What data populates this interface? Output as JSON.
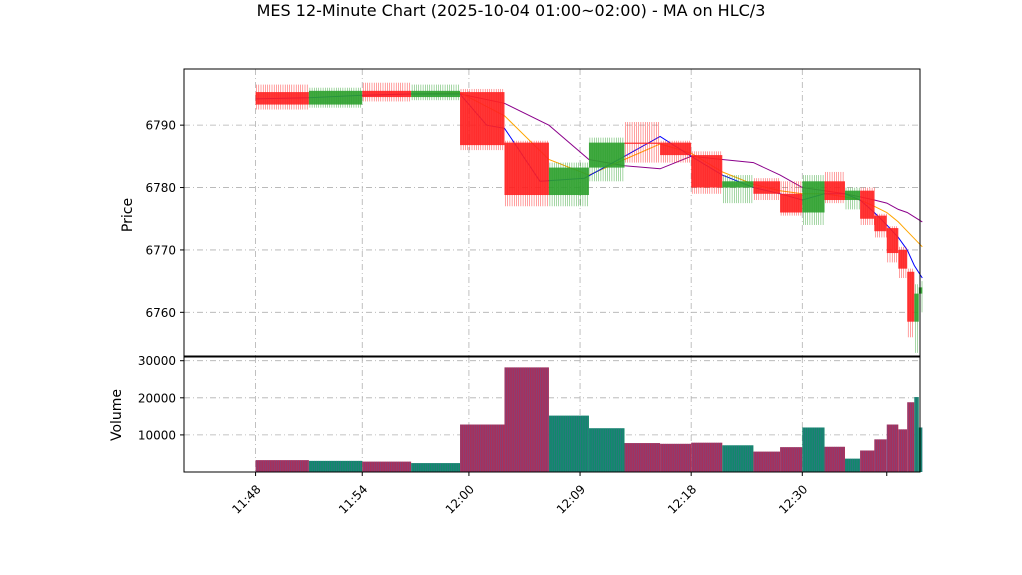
{
  "chart_data": {
    "type": "candlestick",
    "title": "MES 12-Minute Chart (2025-10-04 01:00~02:00) - MA on HLC/3",
    "price_panel": {
      "ylabel": "Price",
      "ylim": [
        6753,
        6799
      ],
      "yticks": [
        6760,
        6770,
        6780,
        6790
      ],
      "grid": true
    },
    "volume_panel": {
      "ylabel": "Volume",
      "ylim": [
        0,
        31000
      ],
      "yticks": [
        10000,
        20000,
        30000
      ],
      "ytick_labels": [
        "10000",
        "20000",
        "30000"
      ],
      "grid": true
    },
    "xlim": [
      0,
      76
    ],
    "xticks": [
      {
        "x": 4,
        "label": "11:48"
      },
      {
        "x": 16,
        "label": "11:54"
      },
      {
        "x": 28,
        "label": "12:00"
      },
      {
        "x": 40.5,
        "label": "12:09"
      },
      {
        "x": 53,
        "label": "12:18"
      },
      {
        "x": 65.5,
        "label": "12:30"
      },
      {
        "x": 75,
        "label": ""
      }
    ],
    "colors": {
      "up": "#2ca02c",
      "down": "#ff2020",
      "volume_up": "#0f8a6a",
      "volume_down": "#a8305a",
      "volume_edge": "#5a5aa0",
      "ma_fast": "#0000ff",
      "ma_mid": "#ffa500",
      "ma_slow": "#8b008b",
      "grid": "#b0b0b0"
    },
    "candles": [
      {
        "start": 4,
        "end": 10,
        "open": 6795.3,
        "high": 6796.5,
        "low": 6792.5,
        "close": 6793.3,
        "volume": 3200
      },
      {
        "start": 10,
        "end": 16,
        "open": 6793.3,
        "high": 6796.0,
        "low": 6792.8,
        "close": 6795.5,
        "volume": 3000
      },
      {
        "start": 16,
        "end": 21.5,
        "open": 6795.5,
        "high": 6796.8,
        "low": 6793.8,
        "close": 6794.5,
        "volume": 2800
      },
      {
        "start": 21.5,
        "end": 27,
        "open": 6794.5,
        "high": 6796.5,
        "low": 6794.0,
        "close": 6795.5,
        "volume": 2400
      },
      {
        "start": 27,
        "end": 32,
        "open": 6795.3,
        "high": 6795.8,
        "low": 6786.0,
        "close": 6786.8,
        "volume": 12800
      },
      {
        "start": 32,
        "end": 37,
        "open": 6787.2,
        "high": 6787.5,
        "low": 6777.0,
        "close": 6778.8,
        "volume": 28200
      },
      {
        "start": 37,
        "end": 41.5,
        "open": 6778.8,
        "high": 6784.0,
        "low": 6777.0,
        "close": 6783.2,
        "volume": 15200
      },
      {
        "start": 41.5,
        "end": 45.5,
        "open": 6783.2,
        "high": 6788.0,
        "low": 6781.0,
        "close": 6787.2,
        "volume": 11800
      },
      {
        "start": 45.5,
        "end": 49.5,
        "open": 6787.2,
        "high": 6790.5,
        "low": 6784.0,
        "close": 6787.0,
        "volume": 7800
      },
      {
        "start": 49.5,
        "end": 53,
        "open": 6787.2,
        "high": 6787.5,
        "low": 6784.0,
        "close": 6785.2,
        "volume": 7600
      },
      {
        "start": 53,
        "end": 56.5,
        "open": 6785.2,
        "high": 6785.8,
        "low": 6779.0,
        "close": 6780.0,
        "volume": 7900
      },
      {
        "start": 56.5,
        "end": 60,
        "open": 6780.0,
        "high": 6782.0,
        "low": 6777.5,
        "close": 6781.0,
        "volume": 7200
      },
      {
        "start": 60,
        "end": 63,
        "open": 6781.0,
        "high": 6781.5,
        "low": 6778.0,
        "close": 6779.0,
        "volume": 5500
      },
      {
        "start": 63,
        "end": 65.5,
        "open": 6779.0,
        "high": 6781.0,
        "low": 6775.5,
        "close": 6776.0,
        "volume": 6700
      },
      {
        "start": 65.5,
        "end": 68,
        "open": 6776.0,
        "high": 6782.0,
        "low": 6774.0,
        "close": 6781.0,
        "volume": 12000
      },
      {
        "start": 68,
        "end": 70.3,
        "open": 6781.0,
        "high": 6782.5,
        "low": 6777.5,
        "close": 6778.0,
        "volume": 6800
      },
      {
        "start": 70.3,
        "end": 72,
        "open": 6778.0,
        "high": 6780.0,
        "low": 6776.5,
        "close": 6779.5,
        "volume": 3600
      },
      {
        "start": 72,
        "end": 73.6,
        "open": 6779.5,
        "high": 6780.0,
        "low": 6774.0,
        "close": 6775.0,
        "volume": 5800
      },
      {
        "start": 73.6,
        "end": 75,
        "open": 6775.5,
        "high": 6775.8,
        "low": 6772.0,
        "close": 6773.0,
        "volume": 8800
      },
      {
        "start": 75,
        "end": 76.3,
        "open": 6773.5,
        "high": 6773.8,
        "low": 6768.0,
        "close": 6769.5,
        "volume": 12800
      },
      {
        "start": 76.3,
        "end": 77.3,
        "open": 6770.0,
        "high": 6770.5,
        "low": 6765.5,
        "close": 6767.0,
        "volume": 11500
      },
      {
        "start": 77.3,
        "end": 78.1,
        "open": 6766.5,
        "high": 6767.0,
        "low": 6756.0,
        "close": 6758.5,
        "volume": 18800
      },
      {
        "start": 78.1,
        "end": 78.6,
        "open": 6758.5,
        "high": 6764.5,
        "low": 6753.5,
        "close": 6763.0,
        "volume": 20200
      },
      {
        "start": 78.6,
        "end": 79,
        "open": 6763.0,
        "high": 6765.0,
        "low": 6760.0,
        "close": 6764.0,
        "volume": 12000
      }
    ],
    "ma_fast": [
      [
        4,
        6794.2
      ],
      [
        10,
        6794.4
      ],
      [
        16,
        6794.8
      ],
      [
        21.5,
        6795.0
      ],
      [
        27,
        6795.0
      ],
      [
        30,
        6790.0
      ],
      [
        32,
        6789.5
      ],
      [
        36,
        6781.0
      ],
      [
        41,
        6781.5
      ],
      [
        45.5,
        6785.0
      ],
      [
        49.5,
        6788.2
      ],
      [
        53,
        6785.0
      ],
      [
        56.5,
        6782.0
      ],
      [
        60,
        6780.0
      ],
      [
        63,
        6779.0
      ],
      [
        65.5,
        6778.0
      ],
      [
        68,
        6779.0
      ],
      [
        70.3,
        6779.0
      ],
      [
        72,
        6778.0
      ],
      [
        73.6,
        6776.0
      ],
      [
        75,
        6774.0
      ],
      [
        76.3,
        6772.0
      ],
      [
        77.3,
        6770.0
      ],
      [
        78.1,
        6767.5
      ],
      [
        79,
        6765.5
      ]
    ],
    "ma_mid": [
      [
        16,
        6794.8
      ],
      [
        21.5,
        6795.0
      ],
      [
        27,
        6795.2
      ],
      [
        32,
        6791.5
      ],
      [
        37,
        6784.5
      ],
      [
        41.5,
        6782.0
      ],
      [
        45.5,
        6784.5
      ],
      [
        49.5,
        6787.0
      ],
      [
        53,
        6785.5
      ],
      [
        56.5,
        6782.5
      ],
      [
        60,
        6780.5
      ],
      [
        63,
        6779.5
      ],
      [
        65.5,
        6779.0
      ],
      [
        68,
        6779.0
      ],
      [
        70.3,
        6778.5
      ],
      [
        72,
        6778.0
      ],
      [
        73.6,
        6777.0
      ],
      [
        75,
        6776.0
      ],
      [
        76.3,
        6774.5
      ],
      [
        77.3,
        6773.0
      ],
      [
        79,
        6770.5
      ]
    ],
    "ma_slow": [
      [
        21.5,
        6795.0
      ],
      [
        27,
        6795.0
      ],
      [
        32,
        6793.5
      ],
      [
        37,
        6790.0
      ],
      [
        41.5,
        6784.5
      ],
      [
        45.5,
        6783.5
      ],
      [
        49.5,
        6783.0
      ],
      [
        53,
        6785.0
      ],
      [
        56.5,
        6784.5
      ],
      [
        60,
        6784.0
      ],
      [
        63,
        6782.0
      ],
      [
        65.5,
        6780.0
      ],
      [
        68,
        6779.5
      ],
      [
        70.3,
        6779.0
      ],
      [
        72,
        6778.5
      ],
      [
        73.6,
        6778.0
      ],
      [
        75,
        6777.5
      ],
      [
        76.3,
        6776.5
      ],
      [
        77.3,
        6776.0
      ],
      [
        79,
        6774.5
      ]
    ]
  }
}
